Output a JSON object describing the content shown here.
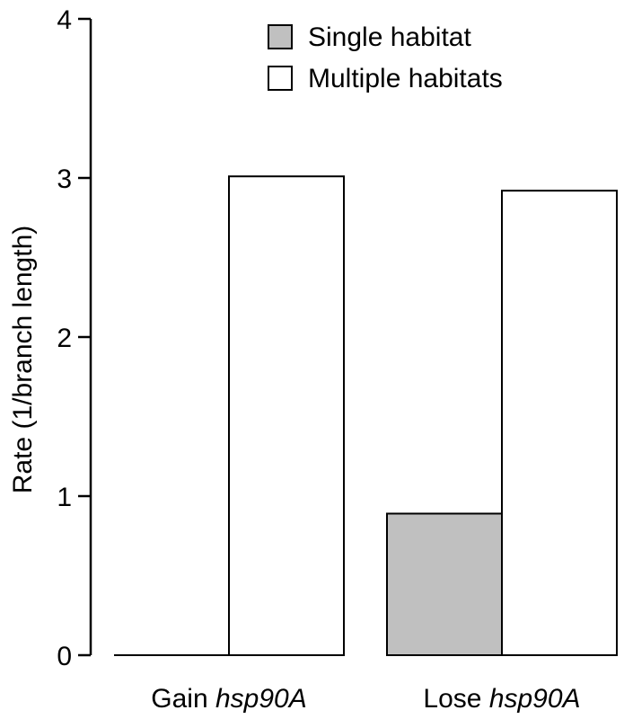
{
  "chart_data": {
    "type": "bar",
    "title": "",
    "xlabel": "",
    "ylabel": "Rate (1/branch length)",
    "ylim": [
      0,
      4
    ],
    "yticks": [
      0,
      1,
      2,
      3,
      4
    ],
    "grid": false,
    "legend_position": "top-right",
    "categories": [
      {
        "prefix": "Gain ",
        "gene": "hsp90A"
      },
      {
        "prefix": "Lose ",
        "gene": "hsp90A"
      }
    ],
    "series": [
      {
        "name": "Single habitat",
        "color": "#c0c0c0",
        "values": [
          0.0,
          0.89
        ]
      },
      {
        "name": "Multiple habitats",
        "color": "#ffffff",
        "values": [
          3.01,
          2.92
        ]
      }
    ]
  }
}
